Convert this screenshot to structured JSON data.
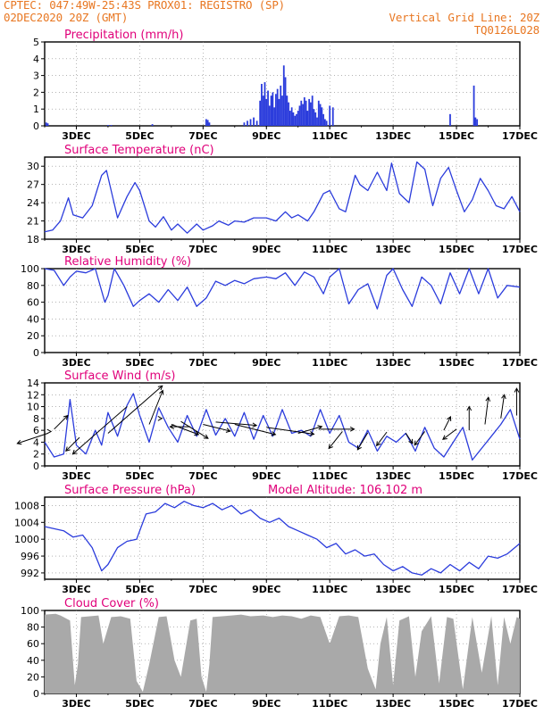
{
  "header": {
    "line1": "CPTEC:   047:49W-25:43S   PROX01: REGISTRO (SP)",
    "line2_left": "02DEC2020 20Z (GMT)",
    "line2_right": "Vertical Grid Line: 20Z",
    "line3_right": "TQ0126L028"
  },
  "colors": {
    "header": "#e87722",
    "panel_title": "#e0007a",
    "series": "#2b3cdc",
    "cloud": "#a9a9a9",
    "grid": "#888888"
  },
  "x_axis": {
    "tick_labels": [
      "3DEC",
      "5DEC",
      "7DEC",
      "9DEC",
      "11DEC",
      "13DEC",
      "15DEC",
      "17DEC"
    ],
    "tick_days": [
      3,
      5,
      7,
      9,
      11,
      13,
      15,
      17
    ],
    "range_days": [
      2.0,
      17.0
    ]
  },
  "chart_data": [
    {
      "id": "precip",
      "type": "bar",
      "title": "Precipitation (mm/h)",
      "ylim": [
        0,
        5
      ],
      "yticks": [
        0,
        1,
        2,
        3,
        4,
        5
      ],
      "grid": true,
      "x": [
        2.05,
        2.1,
        4.0,
        4.1,
        5.4,
        7.1,
        7.15,
        7.2,
        8.3,
        8.4,
        8.5,
        8.6,
        8.7,
        8.8,
        8.85,
        8.9,
        8.95,
        9.0,
        9.05,
        9.1,
        9.15,
        9.2,
        9.25,
        9.3,
        9.35,
        9.4,
        9.45,
        9.5,
        9.55,
        9.6,
        9.65,
        9.7,
        9.75,
        9.8,
        9.85,
        9.9,
        9.95,
        10.0,
        10.05,
        10.1,
        10.15,
        10.2,
        10.25,
        10.3,
        10.35,
        10.4,
        10.45,
        10.5,
        10.55,
        10.6,
        10.65,
        10.7,
        10.75,
        10.8,
        10.85,
        10.9,
        11.0,
        11.1,
        14.8,
        15.55,
        15.6,
        15.65
      ],
      "values": [
        0.2,
        0.15,
        0.05,
        0.05,
        0.1,
        0.4,
        0.35,
        0.2,
        0.2,
        0.3,
        0.4,
        0.5,
        0.3,
        1.5,
        2.5,
        1.8,
        2.6,
        1.6,
        2.1,
        1.2,
        1.8,
        2.0,
        1.1,
        1.9,
        2.2,
        1.6,
        2.4,
        1.8,
        3.6,
        2.9,
        1.8,
        1.4,
        0.9,
        1.1,
        0.8,
        0.6,
        0.7,
        0.9,
        1.2,
        1.5,
        1.3,
        1.7,
        1.5,
        0.9,
        1.6,
        1.4,
        1.8,
        1.0,
        0.8,
        0.5,
        1.5,
        1.3,
        1.1,
        0.7,
        0.4,
        0.3,
        1.2,
        1.1,
        0.7,
        2.4,
        0.5,
        0.4
      ]
    },
    {
      "id": "temp",
      "type": "line",
      "title": "Surface Temperature (nC)",
      "ylim": [
        18,
        31.5
      ],
      "yticks": [
        18,
        21,
        24,
        27,
        30
      ],
      "grid": true,
      "x": [
        2.0,
        2.25,
        2.5,
        2.75,
        2.9,
        3.2,
        3.5,
        3.8,
        3.95,
        4.3,
        4.6,
        4.85,
        5.0,
        5.3,
        5.5,
        5.75,
        6.0,
        6.2,
        6.5,
        6.8,
        7.0,
        7.3,
        7.5,
        7.8,
        8.0,
        8.3,
        8.6,
        9.0,
        9.3,
        9.6,
        9.8,
        10.0,
        10.3,
        10.5,
        10.8,
        11.0,
        11.3,
        11.5,
        11.8,
        11.95,
        12.2,
        12.5,
        12.8,
        12.95,
        13.2,
        13.5,
        13.75,
        14.0,
        14.25,
        14.5,
        14.75,
        15.0,
        15.25,
        15.5,
        15.75,
        16.0,
        16.25,
        16.5,
        16.75,
        17.0
      ],
      "values": [
        19.2,
        19.5,
        21.0,
        24.8,
        22.0,
        21.5,
        23.5,
        28.5,
        29.3,
        21.5,
        25.0,
        27.3,
        26.0,
        21.0,
        20.0,
        21.7,
        19.5,
        20.5,
        19.0,
        20.5,
        19.5,
        20.2,
        21.0,
        20.3,
        21.0,
        20.8,
        21.5,
        21.5,
        21.0,
        22.5,
        21.5,
        22.0,
        21.0,
        22.5,
        25.5,
        26.0,
        23.0,
        22.5,
        28.5,
        27.0,
        26.0,
        29.0,
        26.0,
        30.5,
        25.5,
        24.0,
        30.7,
        29.5,
        23.5,
        28.0,
        29.8,
        26.0,
        22.5,
        24.5,
        28.0,
        26.0,
        23.5,
        23.0,
        25.0,
        22.5
      ]
    },
    {
      "id": "rh",
      "type": "line",
      "title": "Relative Humidity (%)",
      "ylim": [
        0,
        100
      ],
      "yticks": [
        0,
        20,
        40,
        60,
        80,
        100
      ],
      "grid": true,
      "x": [
        2.0,
        2.3,
        2.6,
        2.8,
        3.0,
        3.3,
        3.6,
        3.9,
        4.0,
        4.2,
        4.5,
        4.8,
        5.0,
        5.3,
        5.6,
        5.9,
        6.2,
        6.5,
        6.8,
        7.1,
        7.4,
        7.7,
        8.0,
        8.3,
        8.6,
        9.0,
        9.3,
        9.6,
        9.9,
        10.2,
        10.5,
        10.8,
        11.0,
        11.3,
        11.6,
        11.9,
        12.2,
        12.5,
        12.8,
        13.0,
        13.3,
        13.6,
        13.9,
        14.2,
        14.5,
        14.8,
        15.1,
        15.4,
        15.7,
        16.0,
        16.3,
        16.6,
        17.0
      ],
      "values": [
        100,
        98,
        80,
        90,
        97,
        95,
        100,
        60,
        68,
        100,
        80,
        55,
        62,
        70,
        60,
        75,
        62,
        78,
        55,
        65,
        85,
        80,
        86,
        82,
        88,
        90,
        88,
        95,
        80,
        96,
        90,
        70,
        90,
        100,
        58,
        75,
        82,
        52,
        92,
        100,
        75,
        55,
        90,
        80,
        58,
        95,
        70,
        100,
        70,
        100,
        65,
        80,
        78
      ]
    },
    {
      "id": "wind",
      "type": "line",
      "title": "Surface Wind (m/s)",
      "ylim": [
        0,
        14
      ],
      "yticks": [
        0,
        2,
        4,
        6,
        8,
        10,
        12,
        14
      ],
      "grid": true,
      "x": [
        2.0,
        2.3,
        2.6,
        2.8,
        3.0,
        3.3,
        3.6,
        3.8,
        4.0,
        4.3,
        4.6,
        4.8,
        5.0,
        5.3,
        5.6,
        5.9,
        6.2,
        6.5,
        6.8,
        7.1,
        7.4,
        7.7,
        8.0,
        8.3,
        8.6,
        8.9,
        9.2,
        9.5,
        9.8,
        10.1,
        10.4,
        10.7,
        11.0,
        11.3,
        11.6,
        11.9,
        12.2,
        12.5,
        12.8,
        13.1,
        13.4,
        13.7,
        14.0,
        14.3,
        14.6,
        14.9,
        15.2,
        15.5,
        15.8,
        16.1,
        16.4,
        16.7,
        17.0
      ],
      "values": [
        4.0,
        1.5,
        2.0,
        11.2,
        3.5,
        2.0,
        6.0,
        3.5,
        9.0,
        5.0,
        10.2,
        12.2,
        8.5,
        4.0,
        9.8,
        6.5,
        4.0,
        8.5,
        5.0,
        9.5,
        5.2,
        8.0,
        5.0,
        9.0,
        4.5,
        8.5,
        5.0,
        9.5,
        5.5,
        6.0,
        5.0,
        9.5,
        5.5,
        8.5,
        4.0,
        3.0,
        6.0,
        2.5,
        5.0,
        4.0,
        5.5,
        2.5,
        6.5,
        3.0,
        1.5,
        4.0,
        6.5,
        1.0,
        3.0,
        5.0,
        7.0,
        9.5,
        4.5
      ],
      "arrows": [
        [
          2.1,
          5.5,
          -0.9,
          -0.3
        ],
        [
          2.2,
          5.8,
          0.0,
          0.0
        ],
        [
          2.3,
          6.2,
          0.4,
          0.4
        ],
        [
          3.1,
          4.8,
          -0.4,
          -0.4
        ],
        [
          4.0,
          5.5,
          1.6,
          1.4
        ],
        [
          4.6,
          10.0,
          -1.6,
          -1.4
        ],
        [
          5.3,
          7.0,
          0.4,
          1.0
        ],
        [
          5.7,
          8.0,
          0.0,
          0.0
        ],
        [
          6.0,
          7.0,
          0.8,
          -0.3
        ],
        [
          6.3,
          7.5,
          0.8,
          -0.5
        ],
        [
          6.6,
          6.6,
          -0.6,
          0.0
        ],
        [
          7.0,
          7.0,
          0.8,
          -0.2
        ],
        [
          7.4,
          7.4,
          1.2,
          -0.1
        ],
        [
          8.0,
          7.0,
          1.2,
          -0.3
        ],
        [
          9.0,
          6.5,
          1.4,
          -0.2
        ],
        [
          10.0,
          5.5,
          0.7,
          0.2
        ],
        [
          10.7,
          6.2,
          1.0,
          0.0
        ],
        [
          11.4,
          5.8,
          -0.4,
          -0.5
        ],
        [
          12.2,
          5.6,
          -0.3,
          -0.5
        ],
        [
          12.8,
          5.7,
          -0.3,
          -0.4
        ],
        [
          13.4,
          5.5,
          0.2,
          -0.3
        ],
        [
          14.0,
          5.8,
          -0.3,
          -0.4
        ],
        [
          14.6,
          6.0,
          0.2,
          0.4
        ],
        [
          15.0,
          6.2,
          -0.4,
          -0.3
        ],
        [
          15.4,
          6.0,
          0.0,
          0.7
        ],
        [
          15.9,
          7.0,
          0.1,
          0.8
        ],
        [
          16.4,
          8.0,
          0.1,
          0.7
        ],
        [
          16.9,
          8.5,
          0.0,
          0.8
        ]
      ]
    },
    {
      "id": "pressure",
      "type": "line",
      "title": "Surface Pressure (hPa)",
      "subtitle": "Model Altitude: 106.102  m",
      "ylim": [
        990.5,
        1010
      ],
      "yticks": [
        992,
        996,
        1000,
        1004,
        1008
      ],
      "grid": true,
      "x": [
        2.0,
        2.3,
        2.6,
        2.9,
        3.2,
        3.5,
        3.8,
        4.0,
        4.3,
        4.6,
        4.9,
        5.2,
        5.5,
        5.8,
        6.1,
        6.4,
        6.7,
        7.0,
        7.3,
        7.6,
        7.9,
        8.2,
        8.5,
        8.8,
        9.1,
        9.4,
        9.7,
        10.0,
        10.3,
        10.6,
        10.9,
        11.2,
        11.5,
        11.8,
        12.1,
        12.4,
        12.7,
        13.0,
        13.3,
        13.6,
        13.9,
        14.2,
        14.5,
        14.8,
        15.1,
        15.4,
        15.7,
        16.0,
        16.3,
        16.6,
        17.0
      ],
      "values": [
        1003.0,
        1002.5,
        1002.0,
        1000.5,
        1001.0,
        998.0,
        992.5,
        994.0,
        998.0,
        999.5,
        1000.0,
        1006.0,
        1006.5,
        1008.5,
        1007.5,
        1009.0,
        1008.0,
        1007.5,
        1008.5,
        1007.0,
        1008.0,
        1006.0,
        1007.0,
        1005.0,
        1004.0,
        1005.0,
        1003.0,
        1002.0,
        1001.0,
        1000.0,
        998.0,
        999.0,
        996.5,
        997.5,
        996.0,
        996.5,
        994.0,
        992.5,
        993.5,
        992.0,
        991.5,
        993.0,
        992.0,
        994.0,
        992.5,
        994.5,
        993.0,
        996.0,
        995.5,
        996.5,
        999.0
      ]
    },
    {
      "id": "cloud",
      "type": "area",
      "title": "Cloud Cover (%)",
      "ylim": [
        0,
        100
      ],
      "yticks": [
        0,
        20,
        40,
        60,
        80,
        100
      ],
      "grid": true,
      "x": [
        2.0,
        2.35,
        2.5,
        2.8,
        2.95,
        3.05,
        3.15,
        3.7,
        3.85,
        4.1,
        4.4,
        4.7,
        4.9,
        5.1,
        5.3,
        5.6,
        5.85,
        6.1,
        6.3,
        6.6,
        6.8,
        6.95,
        7.1,
        7.2,
        7.3,
        7.6,
        7.9,
        8.2,
        8.5,
        8.9,
        9.2,
        9.5,
        9.8,
        10.1,
        10.4,
        10.7,
        11.0,
        11.3,
        11.6,
        11.9,
        12.2,
        12.45,
        12.6,
        12.8,
        13.0,
        13.2,
        13.5,
        13.7,
        13.9,
        14.2,
        14.45,
        14.7,
        14.9,
        15.2,
        15.5,
        15.8,
        16.1,
        16.3,
        16.5,
        16.7,
        16.9,
        17.0
      ],
      "values": [
        95,
        96,
        94,
        88,
        10,
        35,
        92,
        94,
        60,
        92,
        93,
        90,
        15,
        2,
        35,
        92,
        93,
        40,
        20,
        88,
        90,
        20,
        2,
        35,
        92,
        93,
        94,
        95,
        93,
        94,
        92,
        94,
        93,
        90,
        94,
        92,
        60,
        93,
        94,
        92,
        30,
        5,
        60,
        92,
        10,
        88,
        93,
        20,
        75,
        93,
        12,
        92,
        90,
        5,
        92,
        25,
        93,
        10,
        92,
        60,
        92,
        90
      ]
    }
  ]
}
